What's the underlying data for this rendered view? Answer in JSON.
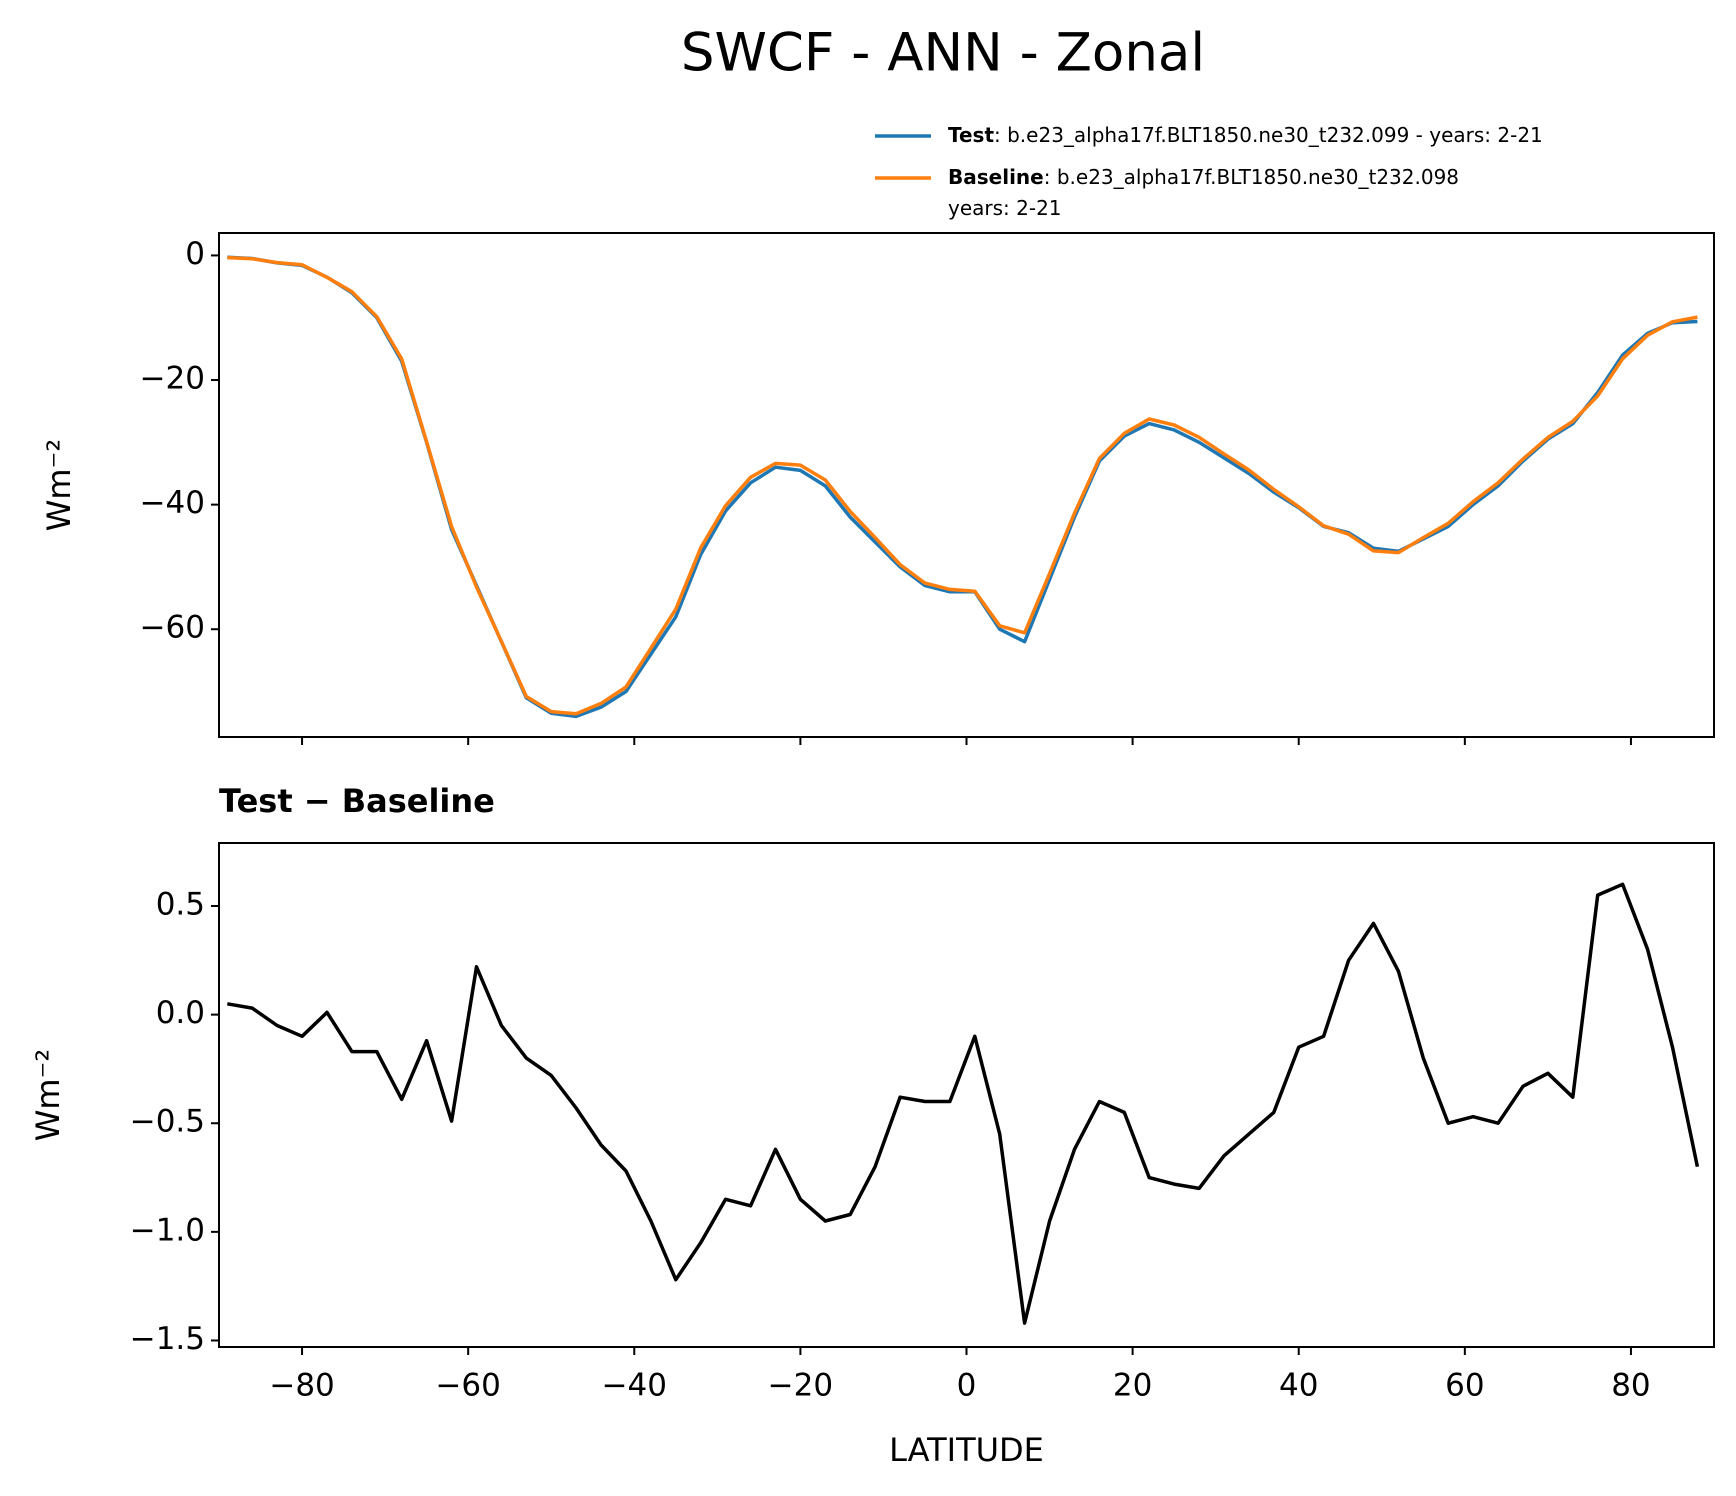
{
  "chart_data": [
    {
      "type": "line",
      "title": "SWCF - ANN - Zonal",
      "ylabel": "Wm⁻²",
      "x": [
        -89,
        -86,
        -83,
        -80,
        -77,
        -74,
        -71,
        -68,
        -65,
        -62,
        -59,
        -56,
        -53,
        -50,
        -47,
        -44,
        -41,
        -38,
        -35,
        -32,
        -29,
        -26,
        -23,
        -20,
        -17,
        -14,
        -11,
        -8,
        -5,
        -2,
        1,
        4,
        7,
        10,
        13,
        16,
        19,
        22,
        25,
        28,
        31,
        34,
        37,
        40,
        43,
        46,
        49,
        52,
        55,
        58,
        61,
        64,
        67,
        70,
        73,
        76,
        79,
        82,
        85,
        88
      ],
      "series": [
        {
          "name": "Test",
          "label_lines": [
            ": b.e23_alpha17f.BLT1850.ne30_t232.099 - years: 2-21"
          ],
          "color": "#1f77b4",
          "values": [
            -0.3,
            -0.5,
            -1.2,
            -1.6,
            -3.5,
            -6,
            -10,
            -17,
            -30,
            -44,
            -53,
            -62,
            -71,
            -73.5,
            -74,
            -72.5,
            -70,
            -64,
            -58,
            -48,
            -41,
            -36.5,
            -34,
            -34.5,
            -37,
            -42,
            -46,
            -50,
            -53,
            -54,
            -54,
            -60,
            -62,
            -52,
            -42,
            -33,
            -29,
            -27,
            -28,
            -30,
            -32.5,
            -35,
            -38,
            -40.5,
            -43.5,
            -44.5,
            -47,
            -47.5,
            -45.5,
            -43.5,
            -40,
            -37,
            -33,
            -29.5,
            -27,
            -22,
            -16,
            -12.5,
            -10.8,
            -10.6
          ]
        },
        {
          "name": "Baseline",
          "label_lines": [
            ": b.e23_alpha17f.BLT1850.ne30_t232.098",
            "years: 2-21"
          ],
          "color": "#ff7f0e",
          "values": [
            -0.35,
            -0.53,
            -1.15,
            -1.5,
            -3.51,
            -5.83,
            -9.83,
            -16.61,
            -29.88,
            -43.51,
            -53.22,
            -61.95,
            -70.8,
            -73.22,
            -73.57,
            -71.9,
            -69.28,
            -63.05,
            -56.78,
            -46.95,
            -40.15,
            -35.62,
            -33.38,
            -33.65,
            -36.05,
            -41.08,
            -45.3,
            -49.62,
            -52.6,
            -53.6,
            -53.9,
            -59.45,
            -60.58,
            -51.05,
            -41.38,
            -32.6,
            -28.55,
            -26.25,
            -27.22,
            -29.2,
            -31.85,
            -34.45,
            -37.55,
            -40.35,
            -43.4,
            -44.75,
            -47.42,
            -47.7,
            -45.3,
            -43,
            -39.53,
            -36.5,
            -32.67,
            -29.23,
            -26.62,
            -22.55,
            -16.6,
            -12.8,
            -10.65,
            -9.9
          ]
        }
      ],
      "xlim": [
        -90,
        90
      ],
      "xticks": [
        -80,
        -60,
        -40,
        -20,
        0,
        20,
        40,
        60,
        80
      ],
      "ylim": [
        -77.3,
        3.6
      ],
      "yticks": [
        0,
        {
          "value": -20,
          "label": "−20"
        },
        {
          "value": -40,
          "label": "−40"
        },
        {
          "value": -60,
          "label": "−60"
        }
      ],
      "legend": "upper right"
    },
    {
      "type": "line",
      "title": "Test − Baseline",
      "ylabel": "Wm⁻²",
      "xlabel": "LATITUDE",
      "x": [
        -89,
        -86,
        -83,
        -80,
        -77,
        -74,
        -71,
        -68,
        -65,
        -62,
        -59,
        -56,
        -53,
        -50,
        -47,
        -44,
        -41,
        -38,
        -35,
        -32,
        -29,
        -26,
        -23,
        -20,
        -17,
        -14,
        -11,
        -8,
        -5,
        -2,
        1,
        4,
        7,
        10,
        13,
        16,
        19,
        22,
        25,
        28,
        31,
        34,
        37,
        40,
        43,
        46,
        49,
        52,
        55,
        58,
        61,
        64,
        67,
        70,
        73,
        76,
        79,
        82,
        85,
        88
      ],
      "series": [
        {
          "color": "#000000",
          "values": [
            0.05,
            0.03,
            -0.05,
            -0.1,
            0.01,
            -0.17,
            -0.17,
            -0.39,
            -0.12,
            -0.49,
            0.22,
            -0.05,
            -0.2,
            -0.28,
            -0.43,
            -0.6,
            -0.72,
            -0.95,
            -1.22,
            -1.05,
            -0.85,
            -0.88,
            -0.62,
            -0.85,
            -0.95,
            -0.92,
            -0.7,
            -0.38,
            -0.4,
            -0.4,
            -0.1,
            -0.55,
            -1.42,
            -0.95,
            -0.62,
            -0.4,
            -0.45,
            -0.75,
            -0.78,
            -0.8,
            -0.65,
            -0.55,
            -0.45,
            -0.15,
            -0.1,
            0.25,
            0.42,
            0.2,
            -0.2,
            -0.5,
            -0.47,
            -0.5,
            -0.33,
            -0.27,
            -0.38,
            0.55,
            0.6,
            0.3,
            -0.15,
            -0.7
          ]
        }
      ],
      "xlim": [
        -90,
        90
      ],
      "xticks": [
        {
          "value": -80,
          "label": "−80"
        },
        {
          "value": -60,
          "label": "−60"
        },
        {
          "value": -40,
          "label": "−40"
        },
        {
          "value": -20,
          "label": "−20"
        },
        0,
        20,
        40,
        60,
        80
      ],
      "ylim": [
        -1.53,
        0.79
      ],
      "yticks": [
        {
          "value": 0.5,
          "label": "0.5"
        },
        {
          "value": 0,
          "label": "0.0"
        },
        {
          "value": -0.5,
          "label": "−0.5"
        },
        {
          "value": -1,
          "label": "−1.0"
        },
        {
          "value": -1.5,
          "label": "−1.5"
        }
      ]
    }
  ]
}
